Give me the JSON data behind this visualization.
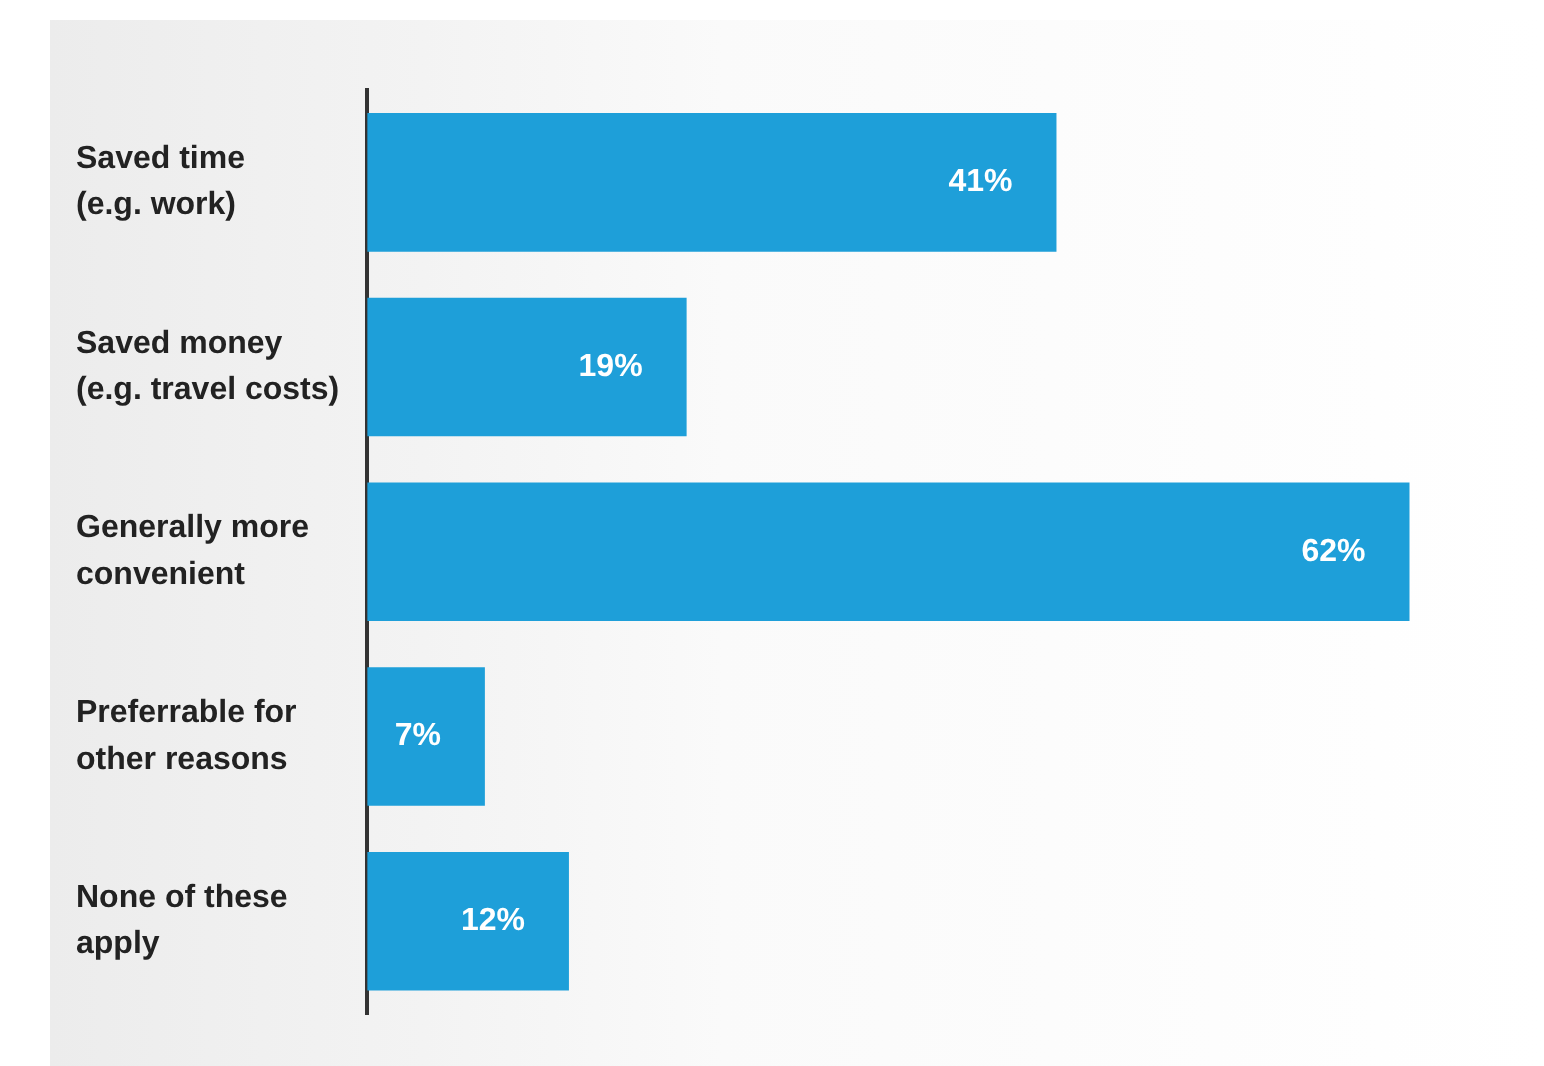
{
  "chart_data": {
    "type": "bar",
    "orientation": "horizontal",
    "categories": [
      "Saved time\n(e.g. work)",
      "Saved money\n(e.g. travel costs)",
      "Generally more\nconvenient",
      "Preferrable for\nother reasons",
      "None of these\napply"
    ],
    "values": [
      41,
      19,
      62,
      7,
      12
    ],
    "value_labels": [
      "41%",
      "19%",
      "62%",
      "7%",
      "12%"
    ],
    "color": "#1e9fd9",
    "tick_labels": "y"
  }
}
